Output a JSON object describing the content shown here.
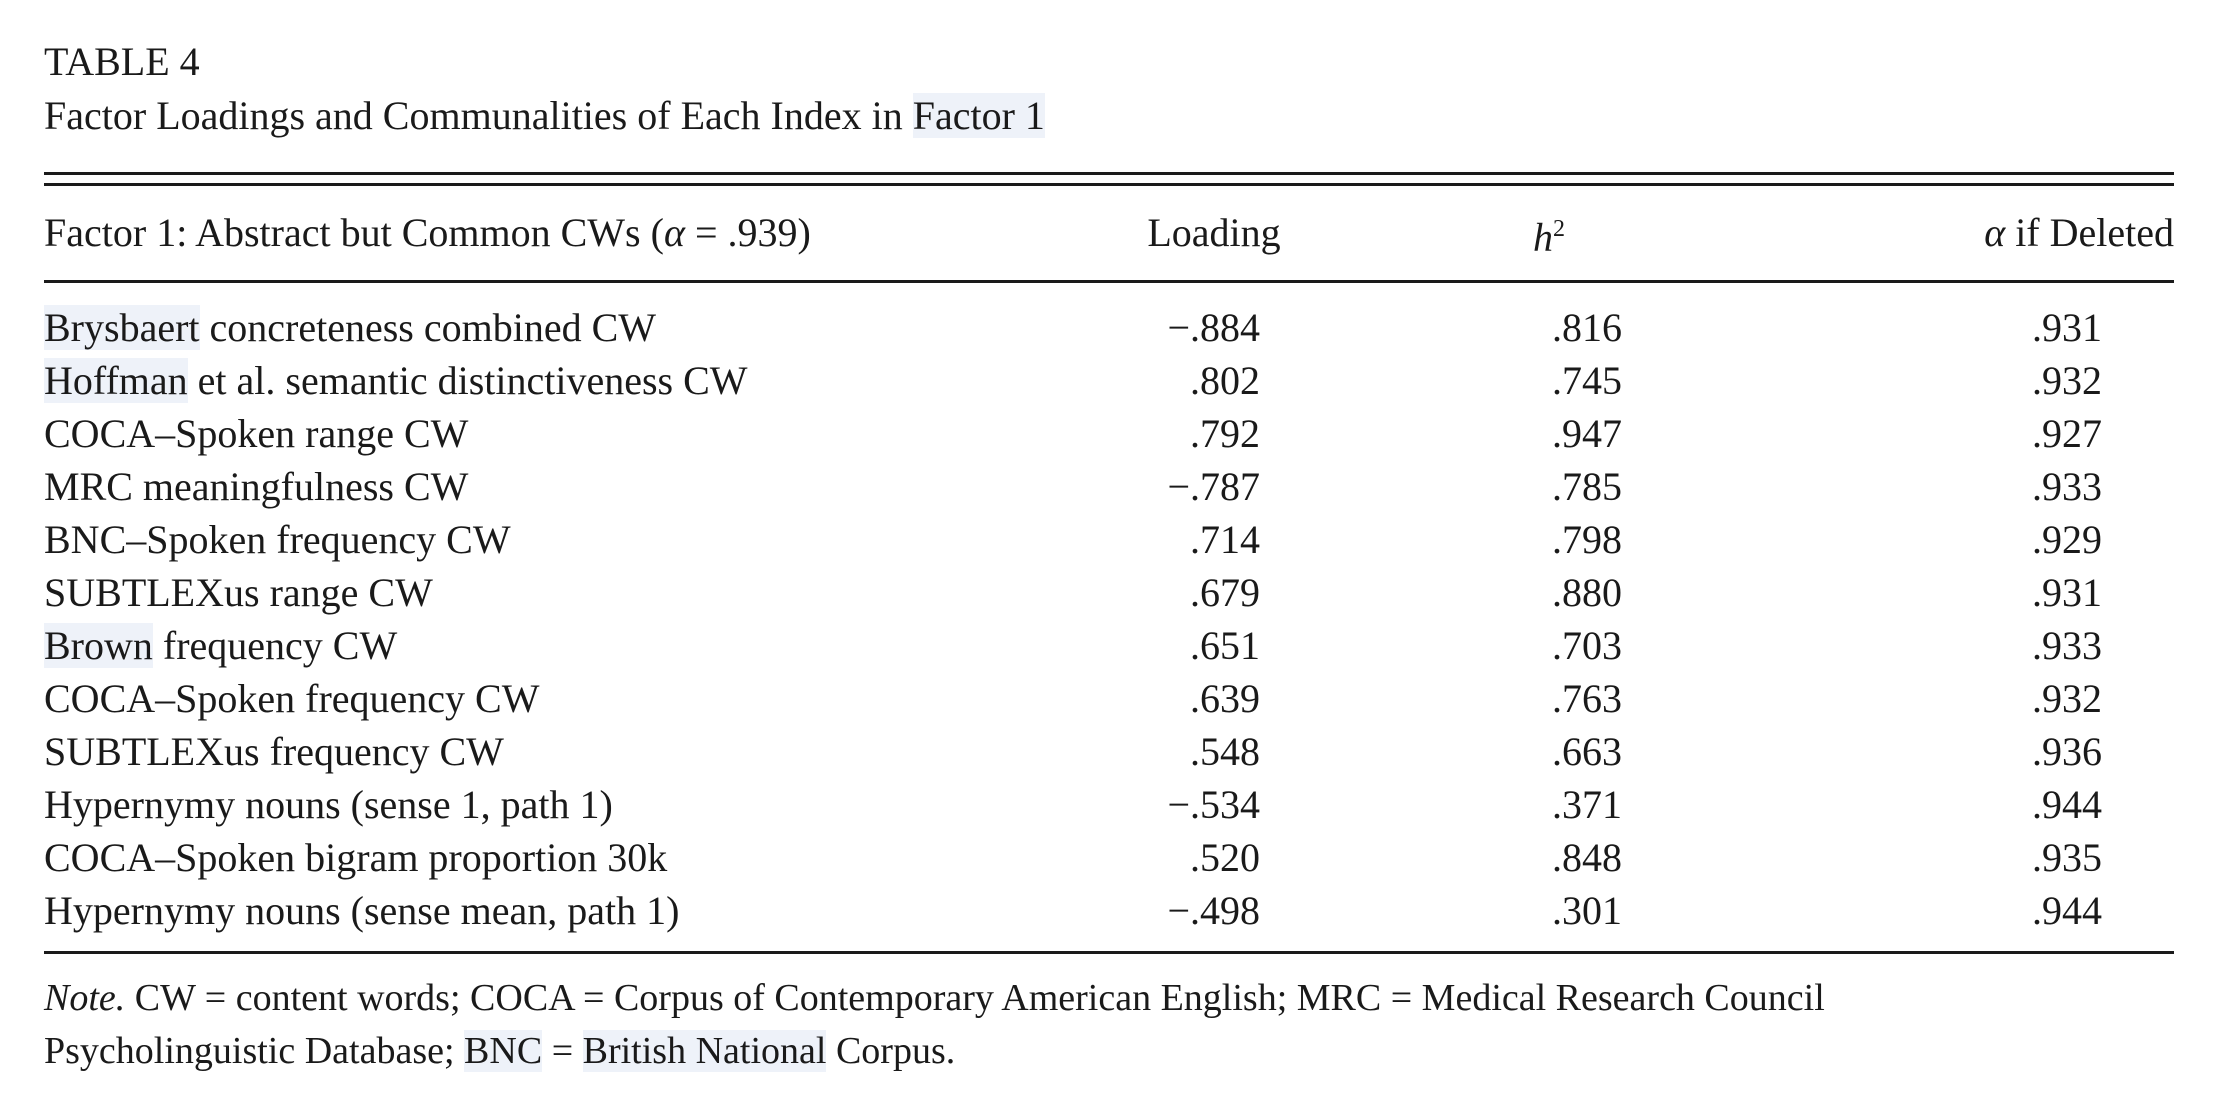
{
  "table": {
    "number": "TABLE 4",
    "caption_prefix": "Factor Loadings and Communalities of Each Index in ",
    "caption_highlight": "Factor 1",
    "header": {
      "factor_prefix": "Factor 1: Abstract but Common CWs (",
      "alpha_symbol": "α",
      "factor_alpha_value": " = .939)",
      "loading": "Loading",
      "h_letter": "h",
      "h_superscript": "2",
      "deleted_symbol": "α",
      "deleted_label": " if Deleted"
    },
    "rows": [
      {
        "index_hl": "Brysbaert",
        "index_rest": " concreteness combined CW",
        "loading": "−.884",
        "h2": ".816",
        "alpha_deleted": ".931"
      },
      {
        "index_hl": "Hoffman",
        "index_rest": " et al. semantic distinctiveness CW",
        "loading": ".802",
        "h2": ".745",
        "alpha_deleted": ".932"
      },
      {
        "index_hl": "",
        "index_rest": "COCA–Spoken range CW",
        "loading": ".792",
        "h2": ".947",
        "alpha_deleted": ".927"
      },
      {
        "index_hl": "",
        "index_rest": "MRC meaningfulness CW",
        "loading": "−.787",
        "h2": ".785",
        "alpha_deleted": ".933"
      },
      {
        "index_hl": "",
        "index_rest": "BNC–Spoken frequency CW",
        "loading": ".714",
        "h2": ".798",
        "alpha_deleted": ".929"
      },
      {
        "index_hl": "",
        "index_rest": "SUBTLEXus range CW",
        "loading": ".679",
        "h2": ".880",
        "alpha_deleted": ".931"
      },
      {
        "index_hl": "Brown",
        "index_rest": " frequency CW",
        "loading": ".651",
        "h2": ".703",
        "alpha_deleted": ".933"
      },
      {
        "index_hl": "",
        "index_rest": "COCA–Spoken frequency CW",
        "loading": ".639",
        "h2": ".763",
        "alpha_deleted": ".932"
      },
      {
        "index_hl": "",
        "index_rest": "SUBTLEXus frequency CW",
        "loading": ".548",
        "h2": ".663",
        "alpha_deleted": ".936"
      },
      {
        "index_hl": "",
        "index_rest": "Hypernymy nouns (sense 1, path 1)",
        "loading": "−.534",
        "h2": ".371",
        "alpha_deleted": ".944"
      },
      {
        "index_hl": "",
        "index_rest": "COCA–Spoken bigram proportion 30k",
        "loading": ".520",
        "h2": ".848",
        "alpha_deleted": ".935"
      },
      {
        "index_hl": "",
        "index_rest": "Hypernymy nouns (sense mean, path 1)",
        "loading": "−.498",
        "h2": ".301",
        "alpha_deleted": ".944"
      }
    ],
    "note": {
      "label": "Note.",
      "text_1": " CW = content words; COCA = Corpus of Contemporary American English; MRC = Medical Research Council",
      "text_2": "Psycholinguistic Database; ",
      "bnc": "BNC",
      "text_3": " = ",
      "british_national": "British National",
      "text_4": " Corpus."
    }
  }
}
